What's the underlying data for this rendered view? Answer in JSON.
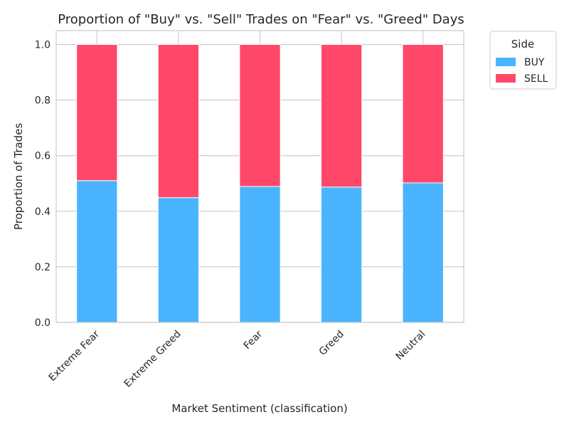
{
  "chart_data": {
    "type": "bar",
    "stacked": true,
    "title": "Proportion of \"Buy\" vs. \"Sell\" Trades on \"Fear\" vs. \"Greed\" Days",
    "xlabel": "Market Sentiment (classification)",
    "ylabel": "Proportion of Trades",
    "categories": [
      "Extreme Fear",
      "Extreme Greed",
      "Fear",
      "Greed",
      "Neutral"
    ],
    "series": [
      {
        "name": "BUY",
        "color": "#4AB4FF",
        "values": [
          0.51,
          0.449,
          0.489,
          0.487,
          0.502
        ]
      },
      {
        "name": "SELL",
        "color": "#FF476A",
        "values": [
          0.49,
          0.551,
          0.511,
          0.513,
          0.498
        ]
      }
    ],
    "ylim": [
      0,
      1.05
    ],
    "yticks": [
      0.0,
      0.2,
      0.4,
      0.6,
      0.8,
      1.0
    ],
    "ytick_labels": [
      "0.0",
      "0.2",
      "0.4",
      "0.6",
      "0.8",
      "1.0"
    ],
    "grid": true,
    "legend": {
      "title": "Side",
      "placement": "outside-top-right"
    }
  }
}
